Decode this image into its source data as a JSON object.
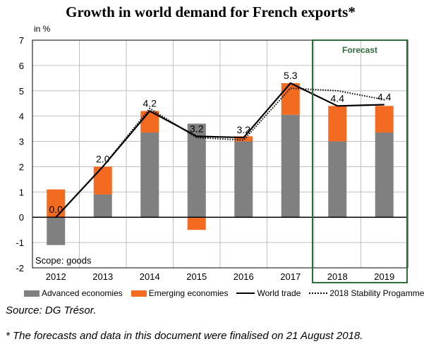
{
  "colors": {
    "advanced": "#808080",
    "emerging": "#F26B21",
    "world_trade": "#000000",
    "stability_programme": "#000000",
    "forecast_frame": "#2E6B3A",
    "forecast_text": "#2E6B3A",
    "grid": "#bfbfbf"
  },
  "chart_data": {
    "type": "bar",
    "title": "Growth in world demand for French exports*",
    "ylabel": "in %",
    "ylim": [
      -2,
      7
    ],
    "yticks": [
      "-2",
      "-1",
      "0",
      "1",
      "2",
      "3",
      "4",
      "5",
      "6",
      "7"
    ],
    "grid": true,
    "categories": [
      "2012",
      "2013",
      "2014",
      "2015",
      "2016",
      "2017",
      "2018",
      "2019"
    ],
    "series": [
      {
        "name": "Advanced economies",
        "kind": "stacked-bar",
        "values": [
          -1.1,
          0.9,
          3.35,
          3.7,
          3.0,
          4.05,
          3.0,
          3.35
        ]
      },
      {
        "name": "Emerging economies",
        "kind": "stacked-bar",
        "values": [
          1.1,
          1.1,
          0.85,
          -0.5,
          0.2,
          1.25,
          1.4,
          1.05
        ]
      },
      {
        "name": "World trade",
        "kind": "line",
        "values": [
          0.0,
          2.0,
          4.2,
          3.2,
          3.15,
          5.3,
          4.4,
          4.45
        ]
      },
      {
        "name": "2018 Stability Progamme",
        "kind": "dotted-line",
        "values": [
          0.0,
          2.0,
          4.3,
          3.15,
          3.05,
          5.1,
          5.0,
          4.65
        ]
      }
    ],
    "data_labels": [
      {
        "index": 0,
        "text": "0.0",
        "value": 0.0
      },
      {
        "index": 1,
        "text": "2.0",
        "value": 2.0
      },
      {
        "index": 2,
        "text": "4.2",
        "value": 4.2
      },
      {
        "index": 3,
        "text": "3.2",
        "value": 3.2
      },
      {
        "index": 4,
        "text": "3.2",
        "value": 3.15
      },
      {
        "index": 5,
        "text": "5.3",
        "value": 5.3
      },
      {
        "index": 6,
        "text": "4.4",
        "value": 4.4
      },
      {
        "index": 7,
        "text": "4.4",
        "value": 4.45
      }
    ],
    "annotations": {
      "forecast_label": "Forecast",
      "forecast_categories": [
        "2018",
        "2019"
      ],
      "scope_note": "Scope: goods"
    },
    "legend": [
      "Advanced economies",
      "Emerging economies",
      "World trade",
      "2018 Stability Progamme"
    ],
    "legend_position": "bottom"
  },
  "source": "Source: DG Trésor.",
  "footnote": "* The forecasts and data in this document were finalised on 21 August 2018."
}
